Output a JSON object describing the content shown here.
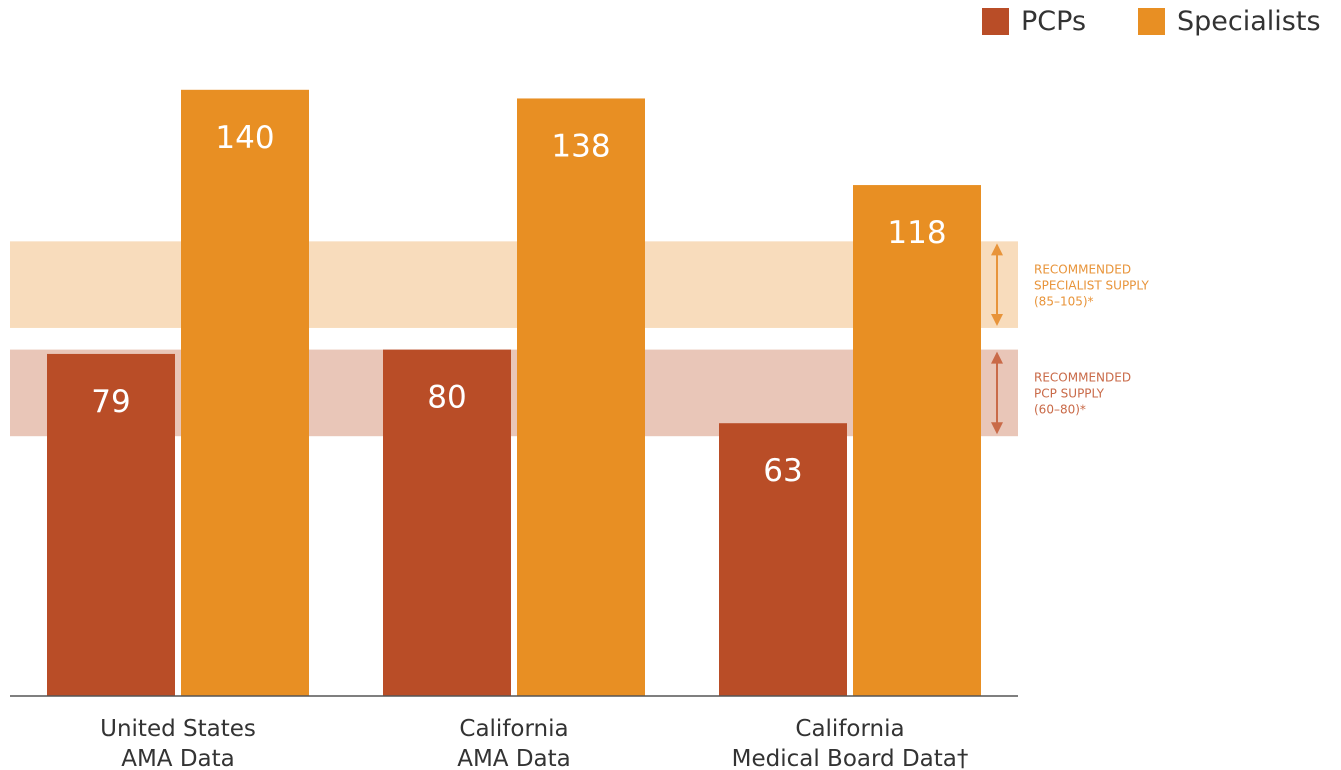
{
  "colors": {
    "pcp": "#b94d27",
    "specialist": "#e88f23",
    "spec_band": "#f8dcbc",
    "pcp_band": "#e9c6b8",
    "spec_annotation": "#e8943a",
    "pcp_annotation": "#c96a48",
    "axis": "#555555",
    "tick_text": "#333333",
    "bar_label": "#ffffff"
  },
  "legend": {
    "pcp_label": "PCPs",
    "specialist_label": "Specialists",
    "placement": "top-right"
  },
  "chart_data": {
    "type": "bar",
    "categories": [
      [
        "United States",
        "AMA Data"
      ],
      [
        "California",
        "AMA Data"
      ],
      [
        "California",
        "Medical Board Data†"
      ]
    ],
    "series": [
      {
        "name": "PCPs",
        "values": [
          79,
          80,
          63
        ],
        "color_key": "pcp"
      },
      {
        "name": "Specialists",
        "values": [
          140,
          138,
          118
        ],
        "color_key": "specialist"
      }
    ],
    "ylim": [
      0,
      150
    ],
    "grid": false,
    "title": "",
    "xlabel": "",
    "ylabel": "",
    "bands": [
      {
        "range": [
          85,
          105
        ],
        "lines": [
          "RECOMMENDED",
          "SPECIALIST SUPPLY",
          "(85–105)*"
        ],
        "fill_key": "spec_band",
        "text_key": "spec_annotation"
      },
      {
        "range": [
          60,
          80
        ],
        "lines": [
          "RECOMMENDED",
          "PCP SUPPLY",
          "(60–80)*"
        ],
        "fill_key": "pcp_band",
        "text_key": "pcp_annotation"
      }
    ]
  }
}
